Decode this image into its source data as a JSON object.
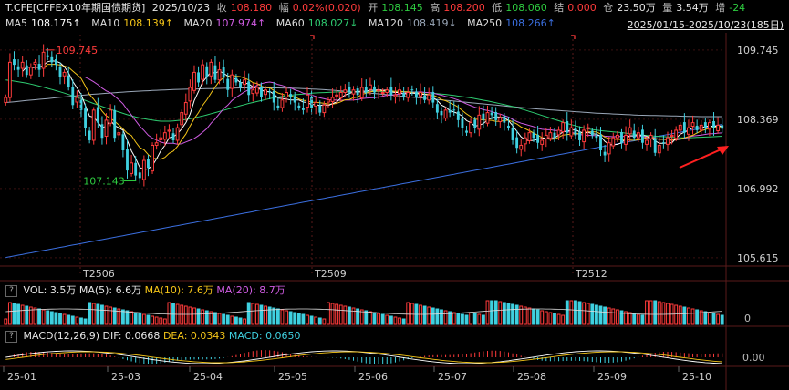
{
  "header": {
    "symbol": "T.CFE[CFFEX10年期国债期货]",
    "date": "2025/10/23",
    "close_label": "收",
    "close": "108.180",
    "change_label": "幅",
    "change": "0.02%(0.020)",
    "open_label": "开",
    "open": "108.145",
    "high_label": "高",
    "high": "108.200",
    "low_label": "低",
    "low": "108.060",
    "settle_label": "结",
    "settle": "0.000",
    "oi_label": "仓",
    "oi": "23.50万",
    "vol_label": "量",
    "vol": "3.54万",
    "inc_label": "增",
    "inc": "-24",
    "mas": [
      {
        "label": "MA5",
        "value": "108.175↑",
        "color": "#ffffff"
      },
      {
        "label": "MA10",
        "value": "108.139↑",
        "color": "#f5c518"
      },
      {
        "label": "MA20",
        "value": "107.974↑",
        "color": "#d05ce3"
      },
      {
        "label": "MA60",
        "value": "108.027↓",
        "color": "#2ecc71"
      },
      {
        "label": "MA120",
        "value": "108.419↓",
        "color": "#9aa7b8"
      },
      {
        "label": "MA250",
        "value": "108.266↑",
        "color": "#3b6fe0"
      }
    ],
    "range": "2025/01/15-2025/10/23(185日)"
  },
  "volume_panel": {
    "title": "VOL: 3.5万",
    "ma5": "MA(5): 6.6万",
    "ma10": "MA(10): 7.6万",
    "ma20": "MA(20): 8.7万",
    "axis_label": "0"
  },
  "macd_panel": {
    "title": "MACD(12,26,9)",
    "dif": "DIF: 0.0668",
    "dea": "DEA: 0.0343",
    "macd": "MACD: 0.0650",
    "axis_label": "0.00"
  },
  "colors": {
    "up": "#ff3b3b",
    "down": "#3fd0e0",
    "ma5": "#ffffff",
    "ma10": "#f5c518",
    "ma20": "#d05ce3",
    "ma60": "#2ecc71",
    "ma120": "#9aa7b8",
    "ma250": "#3b6fe0",
    "grid": "#3a1010"
  },
  "chart_data": {
    "type": "candlestick",
    "price_ticks": [
      "109.745",
      "108.369",
      "106.992",
      "105.615"
    ],
    "tick_values": [
      109.745,
      108.369,
      106.992,
      105.615
    ],
    "ylim": [
      105.45,
      110.05
    ],
    "x_labels": [
      "25-01",
      "25-03",
      "25-04",
      "25-05",
      "25-06",
      "25-07",
      "25-08",
      "25-09",
      "25-10"
    ],
    "contract_markers": [
      "T2506",
      "T2509",
      "T2512"
    ],
    "annotations": {
      "high": "109.745",
      "low": "107.143"
    },
    "closes": [
      108.8,
      109.5,
      109.45,
      109.35,
      109.5,
      109.25,
      109.4,
      109.5,
      109.35,
      109.7,
      109.6,
      109.5,
      109.45,
      109.2,
      109.3,
      109.0,
      108.65,
      108.8,
      108.55,
      108.2,
      107.95,
      108.55,
      108.3,
      108.0,
      108.35,
      108.55,
      108.0,
      108.1,
      107.75,
      107.35,
      107.5,
      107.25,
      107.2,
      107.55,
      107.4,
      107.85,
      107.9,
      108.0,
      108.1,
      108.15,
      107.95,
      108.2,
      108.5,
      108.7,
      109.0,
      109.3,
      109.1,
      109.45,
      109.2,
      109.5,
      109.15,
      109.35,
      109.2,
      108.95,
      109.25,
      109.1,
      109.0,
      109.15,
      108.85,
      108.95,
      109.0,
      108.8,
      108.95,
      108.9,
      108.7,
      108.6,
      108.75,
      108.9,
      108.8,
      108.7,
      108.6,
      108.55,
      108.85,
      108.6,
      108.7,
      108.5,
      108.65,
      108.75,
      108.8,
      108.85,
      108.9,
      108.95,
      108.9,
      108.95,
      108.85,
      109.0,
      108.9,
      109.05,
      108.9,
      108.95,
      108.9,
      108.95,
      108.85,
      108.85,
      108.95,
      108.8,
      108.9,
      108.95,
      108.8,
      108.9,
      108.75,
      108.85,
      108.7,
      108.5,
      108.45,
      108.55,
      108.5,
      108.55,
      108.35,
      108.2,
      108.1,
      108.3,
      108.2,
      108.45,
      108.35,
      108.5,
      108.45,
      108.35,
      108.4,
      108.3,
      108.2,
      107.95,
      107.8,
      107.85,
      108.0,
      108.1,
      108.0,
      107.9,
      107.95,
      108.05,
      108.1,
      108.0,
      108.15,
      108.3,
      108.1,
      108.2,
      108.05,
      107.95,
      108.15,
      108.2,
      108.05,
      108.0,
      107.75,
      107.65,
      107.9,
      108.0,
      108.05,
      107.9,
      108.05,
      108.2,
      108.0,
      108.1,
      107.9,
      107.95,
      108.05,
      107.7,
      107.85,
      107.9,
      108.0,
      108.05,
      108.15,
      108.25,
      108.1,
      108.2,
      108.3,
      108.15,
      108.25,
      108.2,
      108.3,
      108.2,
      108.25,
      108.18
    ],
    "ma60": [
      109.15,
      109.12,
      109.08,
      109.03,
      108.97,
      108.91,
      108.84,
      108.76,
      108.68,
      108.6,
      108.53,
      108.46,
      108.4,
      108.36,
      108.33,
      108.33,
      108.35,
      108.39,
      108.44,
      108.5,
      108.56,
      108.62,
      108.68,
      108.73,
      108.78,
      108.82,
      108.85,
      108.87,
      108.89,
      108.9,
      108.91,
      108.91,
      108.92,
      108.92,
      108.92,
      108.92,
      108.92,
      108.91,
      108.9,
      108.88,
      108.86,
      108.83,
      108.8,
      108.76,
      108.72,
      108.67,
      108.62,
      108.56,
      108.49,
      108.42,
      108.35,
      108.28,
      108.22,
      108.17,
      108.14,
      108.12,
      108.1,
      108.07,
      108.05,
      108.03,
      108.02,
      108.0,
      108.0,
      108.01,
      108.02,
      108.03
    ],
    "ma120": [
      108.7,
      108.74,
      108.78,
      108.82,
      108.86,
      108.89,
      108.92,
      108.94,
      108.96,
      108.97,
      108.98,
      108.99,
      108.99,
      108.99,
      108.98,
      108.96,
      108.93,
      108.9,
      108.86,
      108.82,
      108.78,
      108.74,
      108.7,
      108.66,
      108.62,
      108.58,
      108.55,
      108.52,
      108.49,
      108.47,
      108.45,
      108.44,
      108.43,
      108.42,
      108.42
    ]
  }
}
